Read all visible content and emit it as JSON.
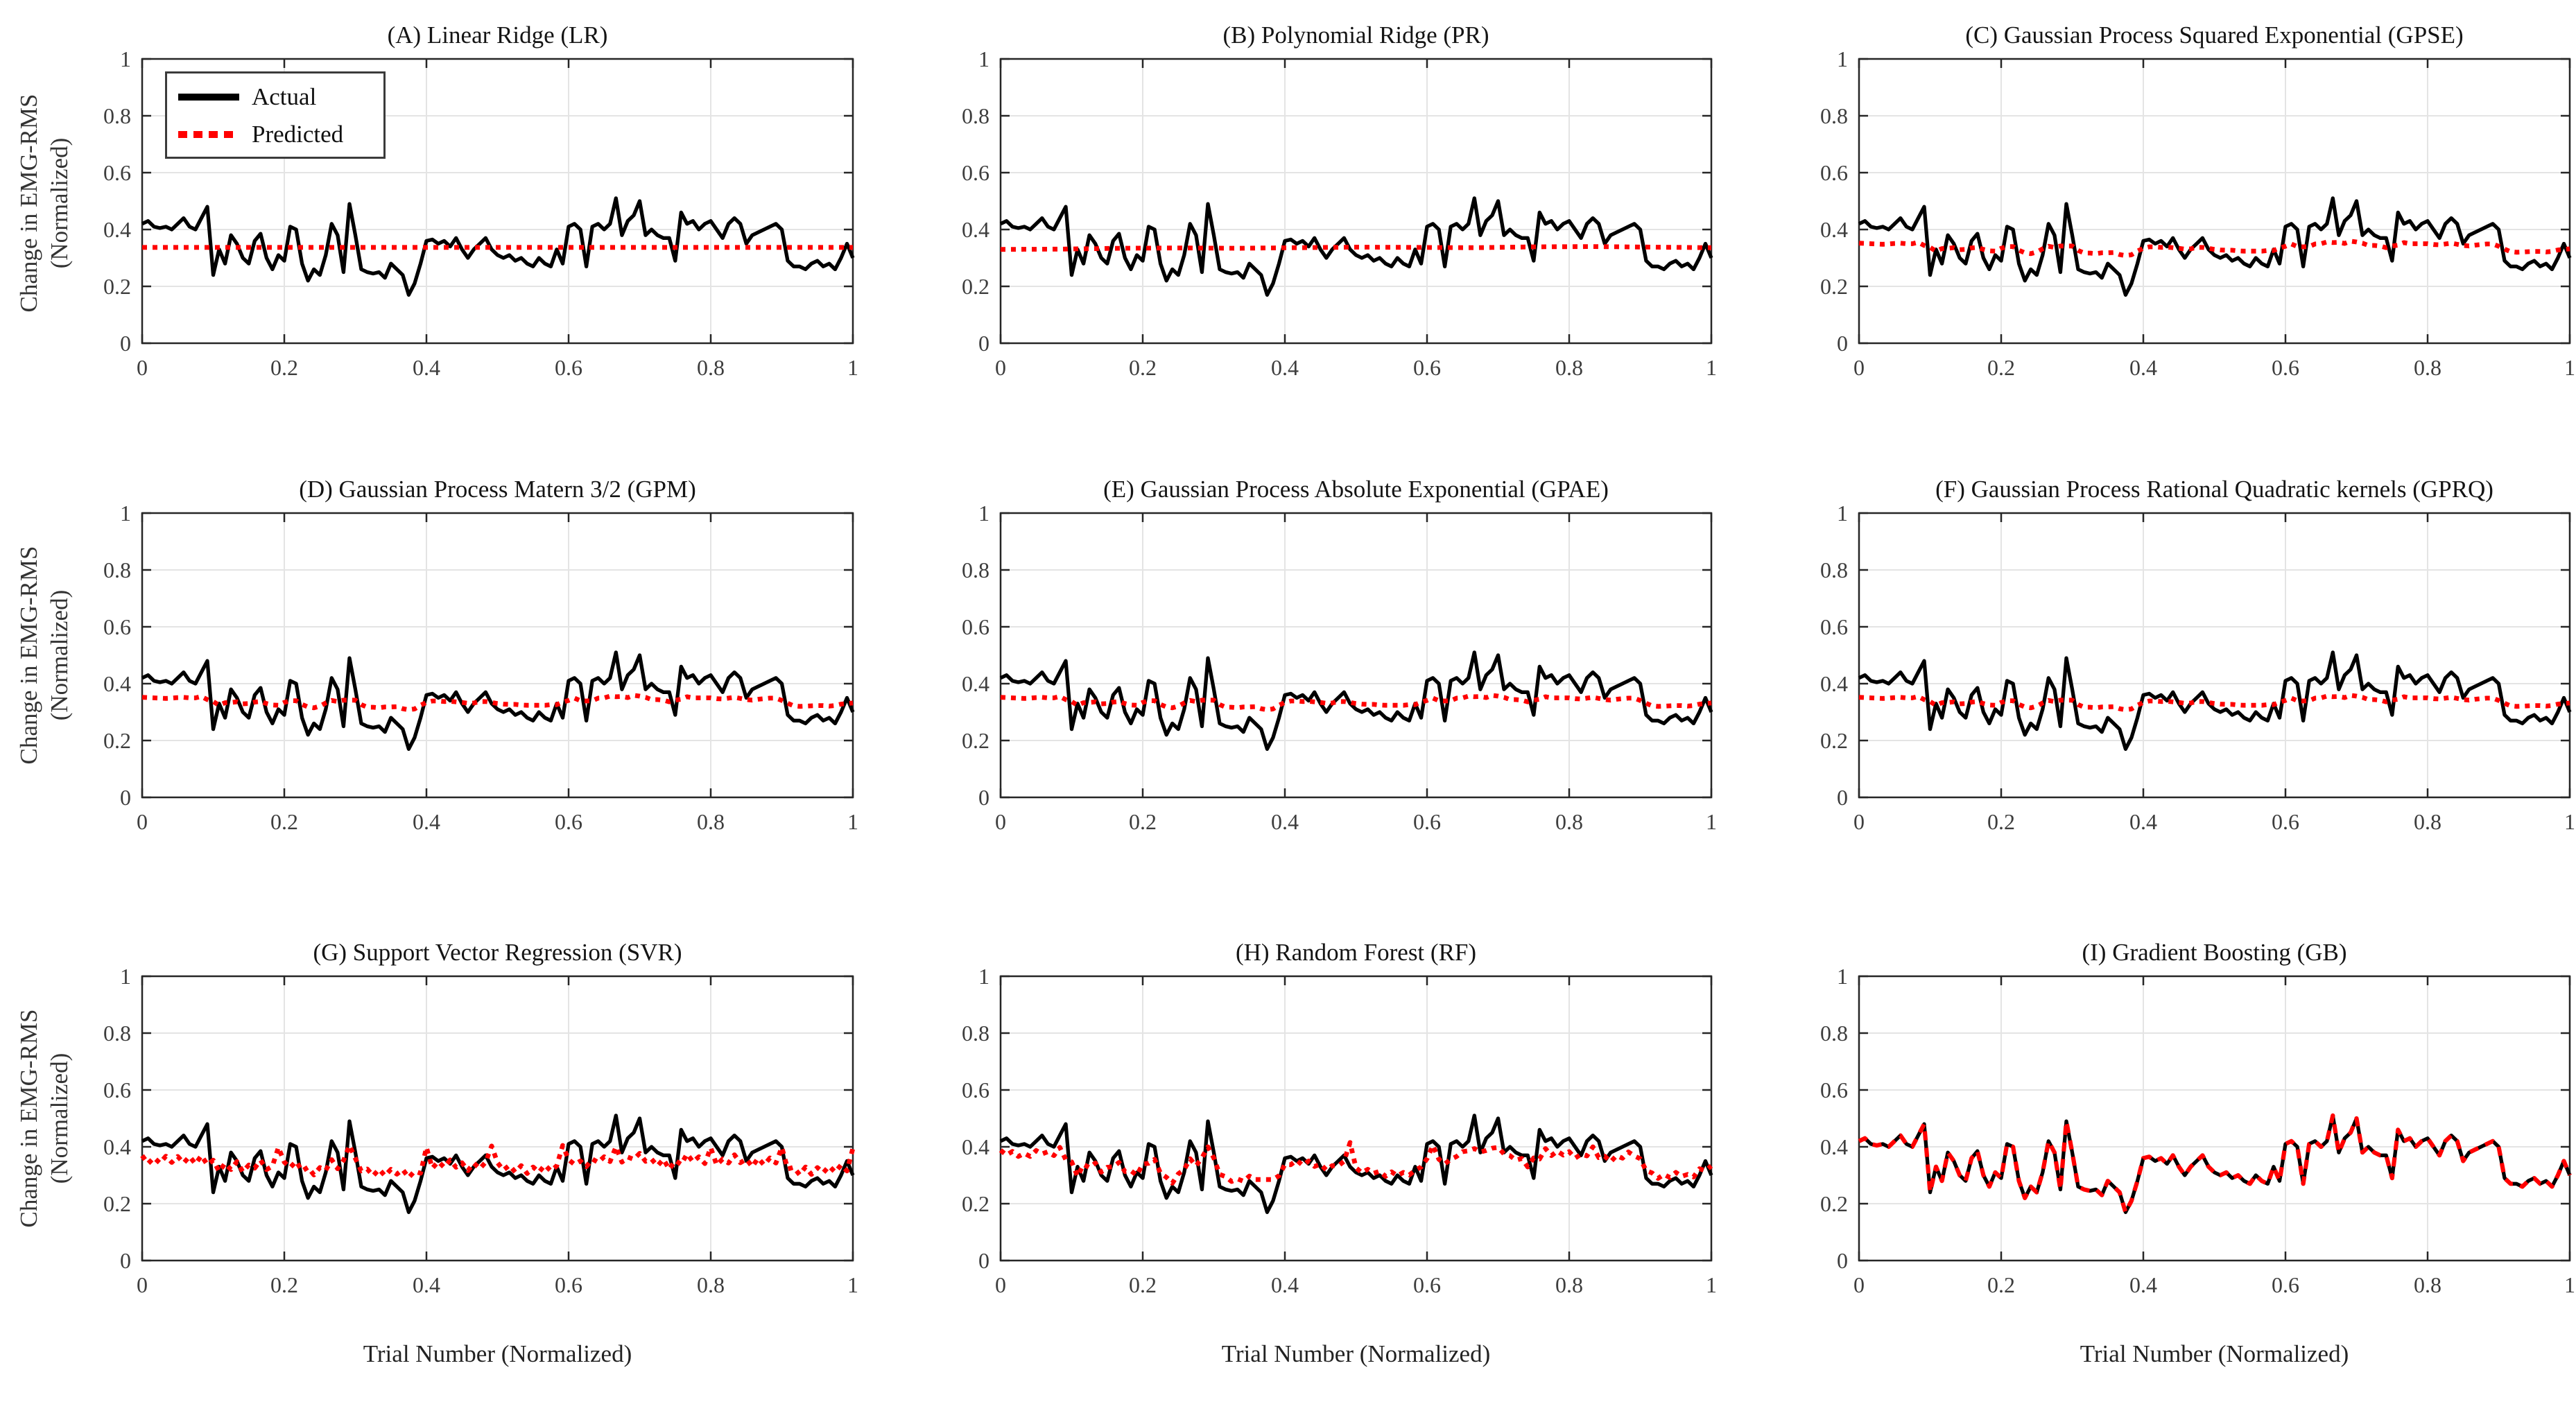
{
  "chart_data": {
    "type": "line",
    "layout": {
      "rows": 3,
      "cols": 3,
      "grid": true,
      "legend_position": "top-left-panel-A"
    },
    "xlabel": "Trial Number (Normalized)",
    "ylabel": "Change in EMG-RMS\n(Normalized)",
    "xlim": [
      0,
      1
    ],
    "ylim": [
      0,
      1
    ],
    "xticks": [
      0,
      0.2,
      0.4,
      0.6,
      0.8,
      1
    ],
    "yticks": [
      0,
      0.2,
      0.4,
      0.6,
      0.8,
      1
    ],
    "xtick_labels": [
      "0",
      "0.2",
      "0.4",
      "0.6",
      "0.8",
      "1"
    ],
    "ytick_labels": [
      "0",
      "0.2",
      "0.4",
      "0.6",
      "0.8",
      "1"
    ],
    "colors": {
      "actual": "#000000",
      "predicted": "#ff0000",
      "grid": "#e4e4e4",
      "axis": "#262626",
      "tick_text": "#3d3d3d",
      "background": "#ffffff"
    },
    "legend": {
      "entries": [
        {
          "label": "Actual",
          "color": "#000000",
          "style": "solid"
        },
        {
          "label": "Predicted",
          "color": "#ff0000",
          "style": "dotted"
        }
      ]
    },
    "panels": [
      {
        "id": "A",
        "title": "(A) Linear Ridge (LR)",
        "predicted_profile": "lr",
        "show_legend": true
      },
      {
        "id": "B",
        "title": "(B) Polynomial Ridge (PR)",
        "predicted_profile": "pr"
      },
      {
        "id": "C",
        "title": "(C) Gaussian Process Squared Exponential (GPSE)",
        "predicted_profile": "gp"
      },
      {
        "id": "D",
        "title": "(D) Gaussian Process Matern 3/2 (GPM)",
        "predicted_profile": "gp"
      },
      {
        "id": "E",
        "title": "(E) Gaussian Process Absolute Exponential (GPAE)",
        "predicted_profile": "gp"
      },
      {
        "id": "F",
        "title": "(F) Gaussian Process Rational Quadratic kernels (GPRQ)",
        "predicted_profile": "gp"
      },
      {
        "id": "G",
        "title": "(G) Support Vector Regression (SVR)",
        "predicted_profile": "svr"
      },
      {
        "id": "H",
        "title": "(H) Random Forest (RF)",
        "predicted_profile": "rf"
      },
      {
        "id": "I",
        "title": "(I) Gradient Boosting (GB)",
        "predicted_profile": "gb"
      }
    ],
    "actual": [
      0.42,
      0.43,
      0.41,
      0.405,
      0.41,
      0.4,
      0.42,
      0.44,
      0.41,
      0.4,
      0.44,
      0.48,
      0.24,
      0.33,
      0.28,
      0.38,
      0.35,
      0.3,
      0.28,
      0.36,
      0.385,
      0.3,
      0.26,
      0.31,
      0.29,
      0.41,
      0.4,
      0.28,
      0.22,
      0.26,
      0.24,
      0.31,
      0.42,
      0.38,
      0.25,
      0.49,
      0.38,
      0.26,
      0.25,
      0.245,
      0.25,
      0.23,
      0.28,
      0.26,
      0.24,
      0.17,
      0.21,
      0.28,
      0.36,
      0.365,
      0.35,
      0.36,
      0.34,
      0.37,
      0.33,
      0.3,
      0.33,
      0.35,
      0.37,
      0.33,
      0.31,
      0.3,
      0.31,
      0.29,
      0.3,
      0.28,
      0.27,
      0.3,
      0.28,
      0.27,
      0.33,
      0.28,
      0.41,
      0.42,
      0.4,
      0.27,
      0.41,
      0.42,
      0.4,
      0.42,
      0.51,
      0.38,
      0.43,
      0.45,
      0.5,
      0.38,
      0.4,
      0.38,
      0.37,
      0.37,
      0.29,
      0.46,
      0.42,
      0.43,
      0.4,
      0.42,
      0.43,
      0.4,
      0.37,
      0.42,
      0.44,
      0.42,
      0.35,
      0.38,
      0.39,
      0.4,
      0.41,
      0.42,
      0.4,
      0.29,
      0.27,
      0.27,
      0.26,
      0.28,
      0.29,
      0.27,
      0.28,
      0.26,
      0.3,
      0.35,
      0.3
    ],
    "profiles": {
      "lr": {
        "type": "flat",
        "value": 0.337
      },
      "pr": {
        "type": "anchors",
        "values": [
          0.33,
          0.331,
          0.334,
          0.335,
          0.334,
          0.336,
          0.338,
          0.337,
          0.336,
          0.339,
          0.34,
          0.338,
          0.336
        ]
      },
      "gp": {
        "type": "series",
        "values": [
          0.352,
          0.351,
          0.35,
          0.349,
          0.348,
          0.349,
          0.351,
          0.352,
          0.35,
          0.35,
          0.355,
          0.344,
          0.337,
          0.324,
          0.333,
          0.334,
          0.336,
          0.329,
          0.33,
          0.335,
          0.337,
          0.33,
          0.325,
          0.324,
          0.334,
          0.34,
          0.34,
          0.327,
          0.318,
          0.315,
          0.321,
          0.332,
          0.341,
          0.337,
          0.342,
          0.342,
          0.342,
          0.326,
          0.317,
          0.317,
          0.315,
          0.318,
          0.318,
          0.319,
          0.312,
          0.308,
          0.311,
          0.324,
          0.334,
          0.339,
          0.339,
          0.337,
          0.338,
          0.336,
          0.334,
          0.331,
          0.332,
          0.337,
          0.337,
          0.334,
          0.33,
          0.328,
          0.327,
          0.327,
          0.325,
          0.324,
          0.324,
          0.324,
          0.324,
          0.326,
          0.326,
          0.335,
          0.341,
          0.349,
          0.34,
          0.339,
          0.34,
          0.349,
          0.35,
          0.356,
          0.354,
          0.355,
          0.351,
          0.359,
          0.356,
          0.352,
          0.344,
          0.344,
          0.342,
          0.336,
          0.342,
          0.345,
          0.354,
          0.35,
          0.35,
          0.35,
          0.35,
          0.347,
          0.346,
          0.349,
          0.352,
          0.348,
          0.344,
          0.342,
          0.345,
          0.347,
          0.349,
          0.349,
          0.341,
          0.331,
          0.322,
          0.32,
          0.321,
          0.322,
          0.323,
          0.323,
          0.321,
          0.323,
          0.328,
          0.33,
          0.332
        ]
      },
      "svr": {
        "type": "series",
        "values": [
          0.369,
          0.341,
          0.362,
          0.343,
          0.367,
          0.345,
          0.366,
          0.343,
          0.366,
          0.34,
          0.369,
          0.337,
          0.353,
          0.313,
          0.342,
          0.32,
          0.348,
          0.312,
          0.336,
          0.325,
          0.353,
          0.32,
          0.332,
          0.398,
          0.346,
          0.327,
          0.349,
          0.315,
          0.328,
          0.301,
          0.327,
          0.317,
          0.355,
          0.323,
          0.352,
          0.405,
          0.359,
          0.315,
          0.322,
          0.298,
          0.321,
          0.298,
          0.321,
          0.304,
          0.32,
          0.292,
          0.314,
          0.307,
          0.398,
          0.325,
          0.348,
          0.328,
          0.354,
          0.328,
          0.344,
          0.316,
          0.343,
          0.323,
          0.346,
          0.403,
          0.344,
          0.318,
          0.335,
          0.311,
          0.334,
          0.306,
          0.329,
          0.311,
          0.336,
          0.315,
          0.333,
          0.405,
          0.355,
          0.338,
          0.35,
          0.33,
          0.357,
          0.345,
          0.365,
          0.348,
          0.4,
          0.346,
          0.364,
          0.356,
          0.377,
          0.349,
          0.357,
          0.333,
          0.356,
          0.321,
          0.352,
          0.338,
          0.375,
          0.347,
          0.365,
          0.341,
          0.397,
          0.336,
          0.357,
          0.343,
          0.372,
          0.344,
          0.357,
          0.33,
          0.36,
          0.336,
          0.361,
          0.343,
          0.398,
          0.322,
          0.328,
          0.302,
          0.329,
          0.303,
          0.327,
          0.309,
          0.332,
          0.311,
          0.336,
          0.315,
          0.395
        ]
      },
      "rf": {
        "type": "series",
        "values": [
          0.388,
          0.371,
          0.384,
          0.366,
          0.377,
          0.366,
          0.387,
          0.375,
          0.383,
          0.369,
          0.398,
          0.355,
          0.347,
          0.296,
          0.338,
          0.327,
          0.343,
          0.311,
          0.328,
          0.33,
          0.345,
          0.313,
          0.316,
          0.3,
          0.339,
          0.342,
          0.356,
          0.307,
          0.293,
          0.272,
          0.305,
          0.32,
          0.358,
          0.333,
          0.361,
          0.4,
          0.361,
          0.303,
          0.295,
          0.278,
          0.287,
          0.279,
          0.297,
          0.285,
          0.285,
          0.285,
          0.285,
          0.298,
          0.338,
          0.337,
          0.353,
          0.335,
          0.35,
          0.331,
          0.339,
          0.318,
          0.334,
          0.333,
          0.349,
          0.415,
          0.326,
          0.309,
          0.321,
          0.307,
          0.314,
          0.296,
          0.312,
          0.298,
          0.31,
          0.301,
          0.317,
          0.329,
          0.358,
          0.405,
          0.356,
          0.34,
          0.356,
          0.366,
          0.383,
          0.386,
          0.394,
          0.382,
          0.387,
          0.395,
          0.398,
          0.375,
          0.369,
          0.353,
          0.359,
          0.329,
          0.361,
          0.357,
          0.394,
          0.369,
          0.385,
          0.371,
          0.383,
          0.36,
          0.374,
          0.368,
          0.4,
          0.362,
          0.367,
          0.347,
          0.369,
          0.36,
          0.382,
          0.368,
          0.358,
          0.316,
          0.308,
          0.289,
          0.303,
          0.292,
          0.31,
          0.296,
          0.303,
          0.294,
          0.323,
          0.316,
          0.333
        ]
      },
      "gb": {
        "type": "same_as_actual"
      }
    }
  }
}
